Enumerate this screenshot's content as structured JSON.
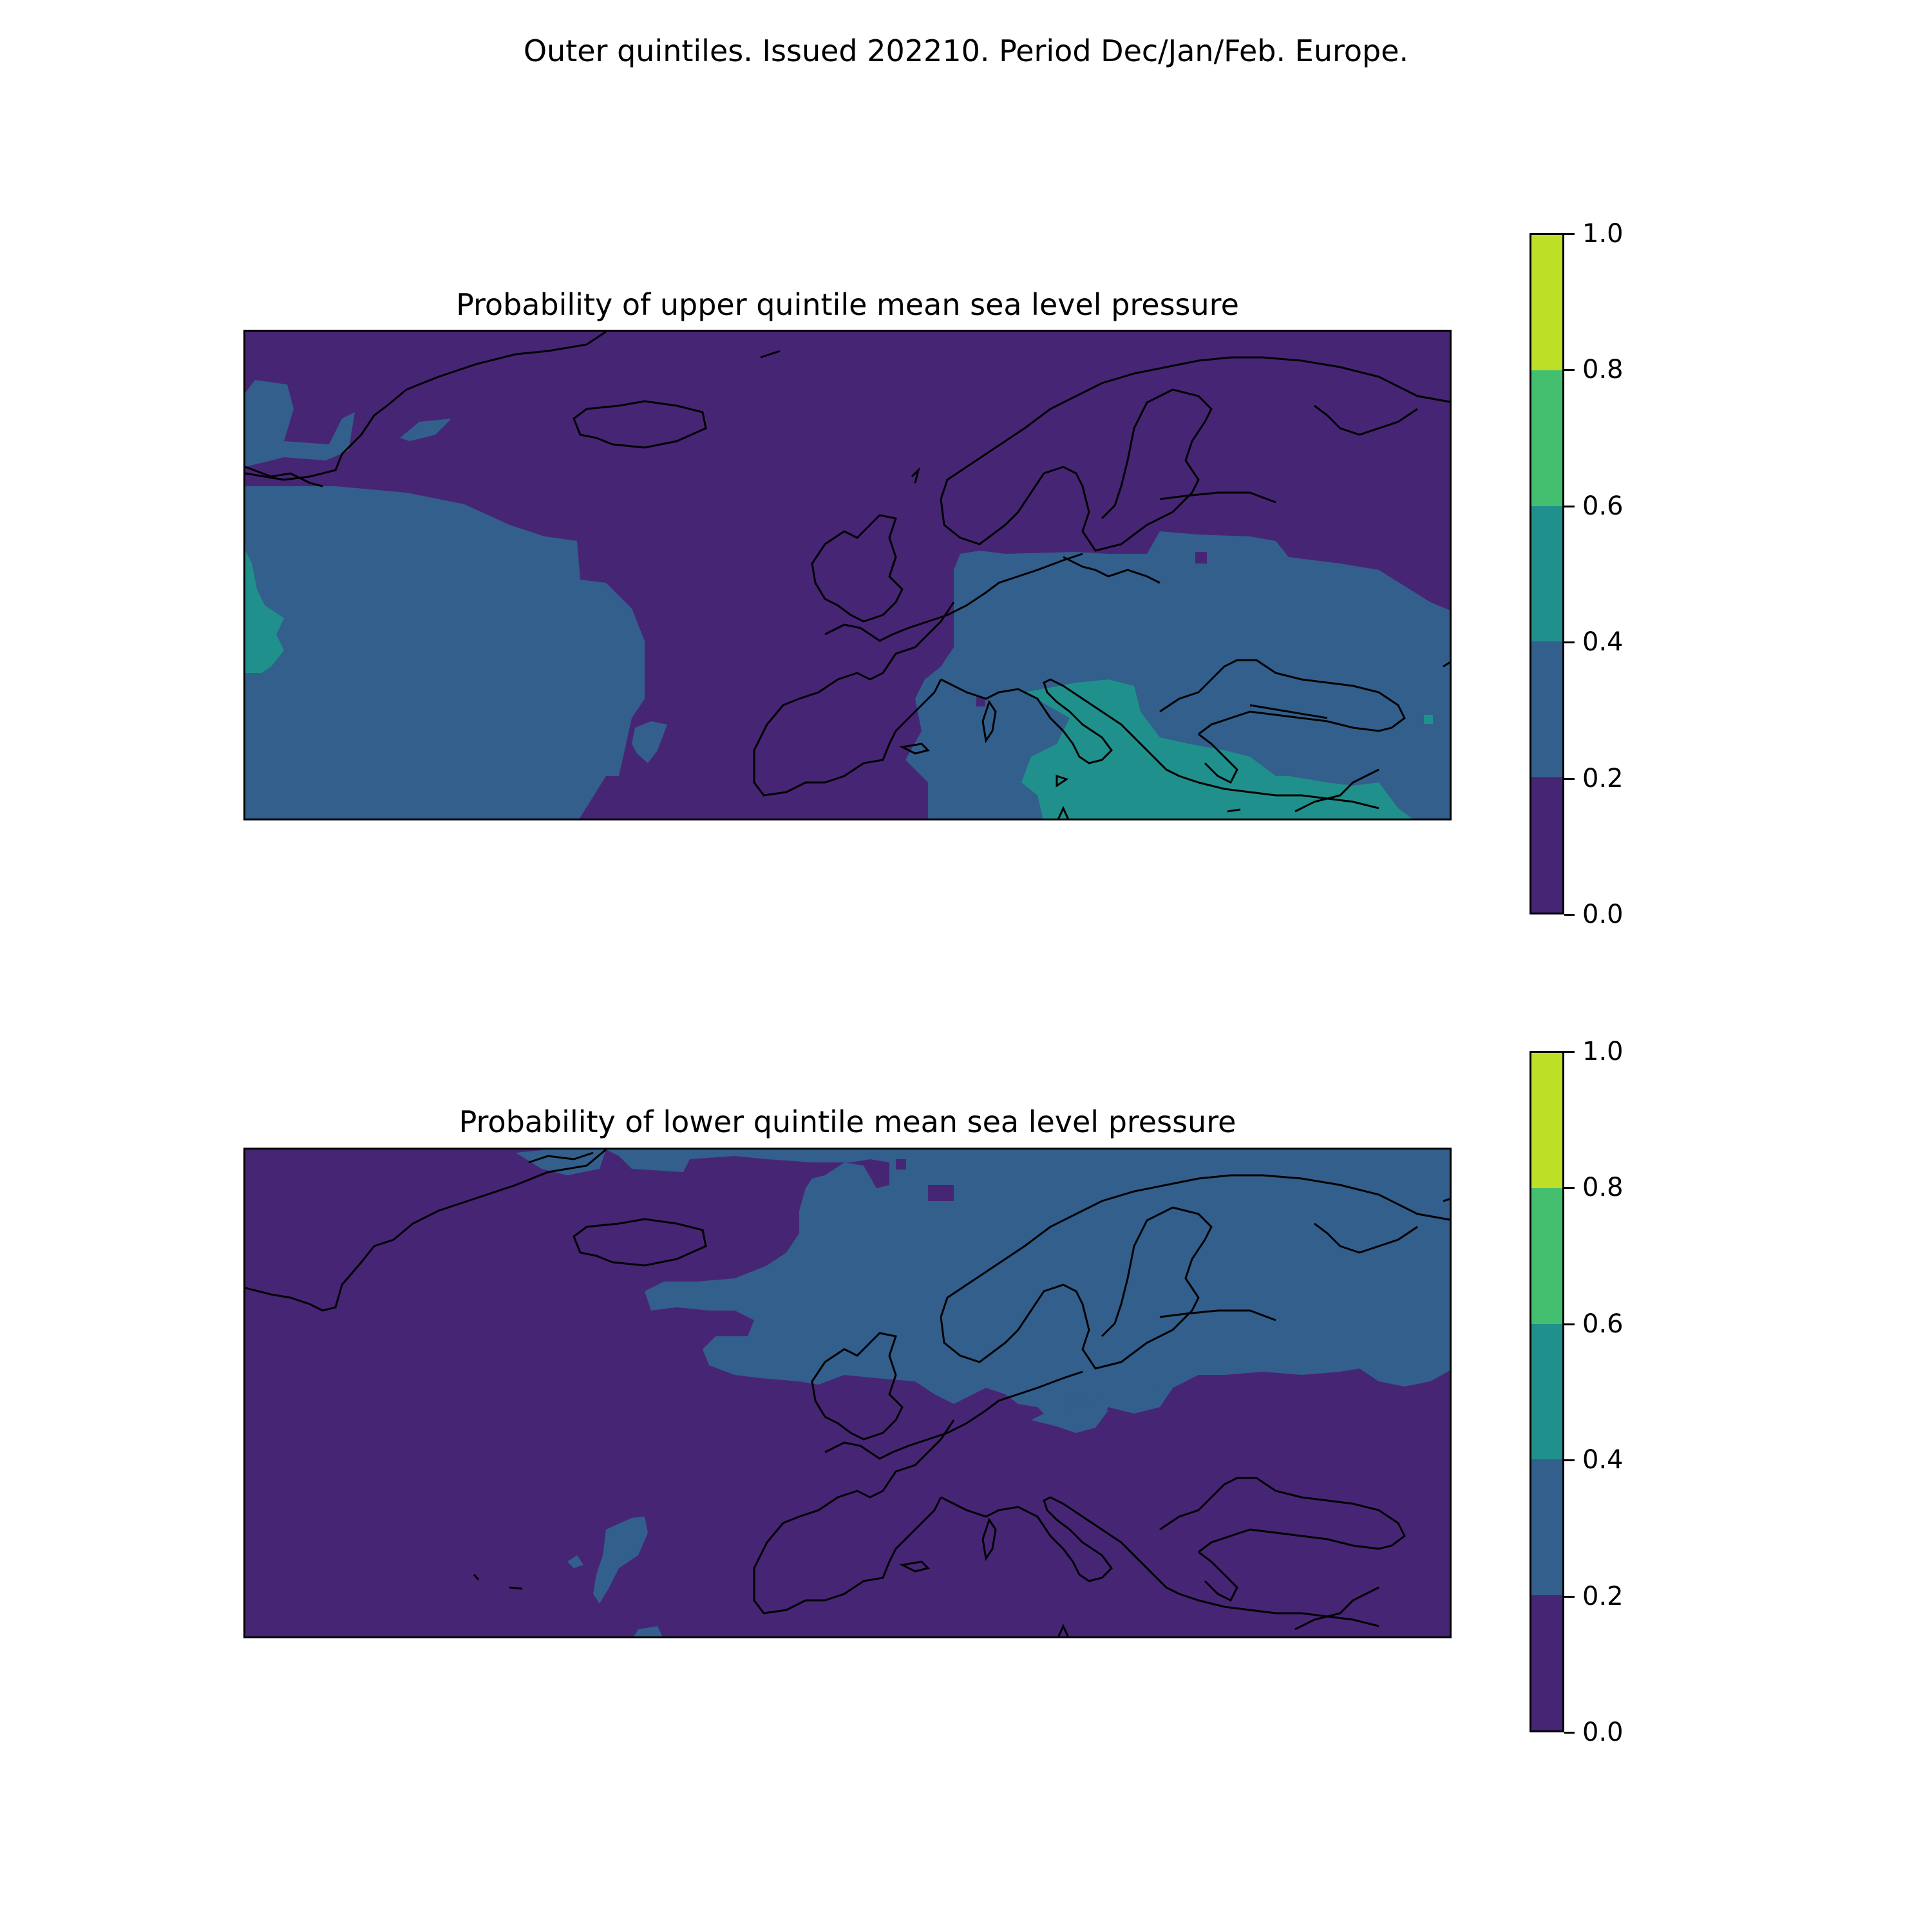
{
  "figure": {
    "title": "Outer quintiles. Issued 202210. Period Dec/Jan/Feb. Europe."
  },
  "colorbar": {
    "levels": [
      0.0,
      0.2,
      0.4,
      0.6,
      0.8,
      1.0
    ],
    "tick_labels": [
      "0.0",
      "0.2",
      "0.4",
      "0.6",
      "0.8",
      "1.0"
    ],
    "colors": [
      "#472575",
      "#335f8c",
      "#20908c",
      "#44bf70",
      "#bddf26"
    ]
  },
  "panels": [
    {
      "title": "Probability of upper quintile mean sea level pressure",
      "background_level": "0.0–0.2",
      "regions": [
        {
          "name": "western-atlantic",
          "level": "0.2–0.4"
        },
        {
          "name": "greenland-southwest",
          "level": "0.2–0.4"
        },
        {
          "name": "azores-patch",
          "level": "0.2–0.4"
        },
        {
          "name": "central-eastern-europe",
          "level": "0.2–0.4"
        },
        {
          "name": "western-mediterranean",
          "level": "0.2–0.4"
        },
        {
          "name": "atlantic-west-edge",
          "level": "0.4–0.6"
        },
        {
          "name": "central-mediterranean-balkans",
          "level": "0.4–0.6"
        }
      ]
    },
    {
      "title": "Probability of lower quintile mean sea level pressure",
      "background_level": "0.0–0.2",
      "regions": [
        {
          "name": "northern-europe-scandinavia",
          "level": "0.2–0.4"
        },
        {
          "name": "eastern-europe-band",
          "level": "0.2–0.4"
        },
        {
          "name": "azores-patch",
          "level": "0.2–0.4"
        },
        {
          "name": "south-atlantic-patch",
          "level": "0.2–0.4"
        }
      ]
    }
  ]
}
